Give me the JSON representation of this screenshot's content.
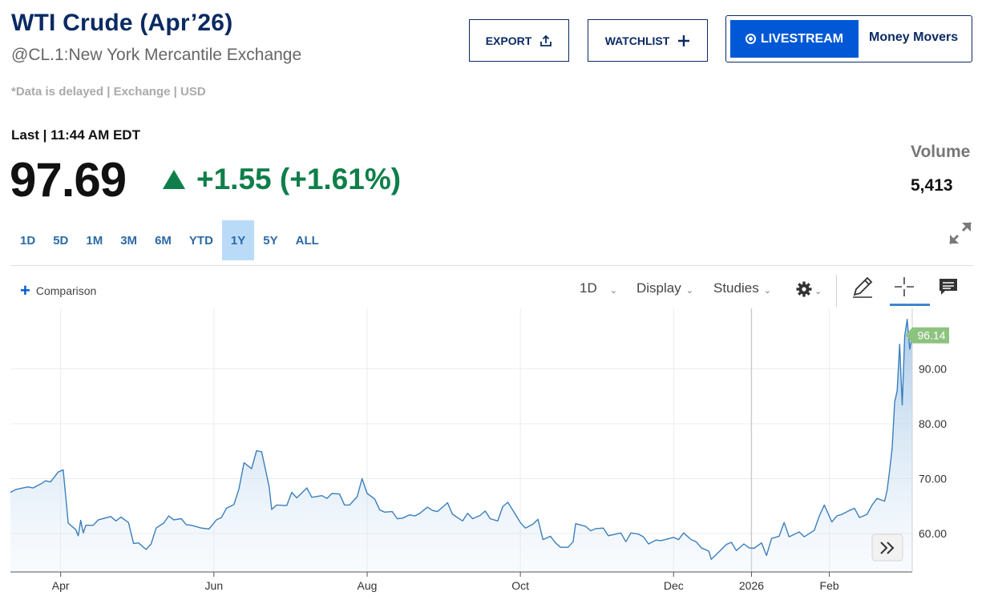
{
  "header": {
    "title": "WTI Crude (Apr’26)",
    "subtitle": "@CL.1:New York Mercantile Exchange",
    "delayed_note": "*Data is delayed | Exchange | USD"
  },
  "actions": {
    "export_label": "EXPORT",
    "watchlist_label": "WATCHLIST",
    "livestream_label": "LIVESTREAM",
    "money_movers_label": "Money Movers"
  },
  "quote": {
    "last_label": "Last | 11:44 AM EDT",
    "price": "97.69",
    "change": "+1.55 (+1.61%)",
    "volume_label": "Volume",
    "volume_value": "5,413"
  },
  "ranges": [
    "1D",
    "5D",
    "1M",
    "3M",
    "6M",
    "YTD",
    "1Y",
    "5Y",
    "ALL"
  ],
  "active_range": "1Y",
  "toolbar": {
    "comparison_label": "Comparison",
    "interval_label": "1D",
    "display_label": "Display",
    "studies_label": "Studies"
  },
  "icons": [
    "upload-icon",
    "plus-icon",
    "live-dot-icon",
    "expand-icon",
    "gear-icon",
    "pencil-icon",
    "crosshair-icon",
    "comment-icon",
    "double-chevron-right-icon"
  ],
  "colors": {
    "brand_navy": "#0b2a63",
    "live_blue": "#0058d6",
    "up_green": "#0e7f4a",
    "line_blue": "#3a7fbd",
    "active_range_bg": "#b9dbf8",
    "price_flag": "#8dc27f"
  },
  "chart_data": {
    "type": "area",
    "title": "",
    "xlabel": "",
    "ylabel": "",
    "last_value_label": "96.14",
    "ylim": [
      53,
      101
    ],
    "y_ticks": [
      60,
      70,
      80,
      90
    ],
    "y_tick_labels": [
      "60.00",
      "70.00",
      "80.00",
      "90.00"
    ],
    "x_ticks": [
      {
        "label": "Apr",
        "date": "2025-04-01"
      },
      {
        "label": "Jun",
        "date": "2025-06-01"
      },
      {
        "label": "Aug",
        "date": "2025-08-01"
      },
      {
        "label": "Oct",
        "date": "2025-10-01"
      },
      {
        "label": "Dec",
        "date": "2025-12-01"
      },
      {
        "label": "2026",
        "date": "2026-01-01"
      },
      {
        "label": "Feb",
        "date": "2026-02-01"
      }
    ],
    "x_range": [
      "2025-03-12",
      "2026-03-06"
    ],
    "grid": true,
    "series": [
      {
        "points": [
          [
            "2025-03-12",
            67.5
          ],
          [
            "2025-03-14",
            68.0
          ],
          [
            "2025-03-17",
            68.3
          ],
          [
            "2025-03-19",
            68.5
          ],
          [
            "2025-03-21",
            68.3
          ],
          [
            "2025-03-24",
            69.0
          ],
          [
            "2025-03-26",
            69.6
          ],
          [
            "2025-03-28",
            69.4
          ],
          [
            "2025-03-31",
            71.2
          ],
          [
            "2025-04-02",
            71.6
          ],
          [
            "2025-04-03",
            66.9
          ],
          [
            "2025-04-04",
            61.9
          ],
          [
            "2025-04-07",
            60.7
          ],
          [
            "2025-04-08",
            59.6
          ],
          [
            "2025-04-09",
            62.4
          ],
          [
            "2025-04-10",
            60.1
          ],
          [
            "2025-04-11",
            61.5
          ],
          [
            "2025-04-14",
            61.5
          ],
          [
            "2025-04-16",
            62.5
          ],
          [
            "2025-04-21",
            63.1
          ],
          [
            "2025-04-23",
            62.3
          ],
          [
            "2025-04-25",
            63.0
          ],
          [
            "2025-04-28",
            62.0
          ],
          [
            "2025-04-30",
            58.2
          ],
          [
            "2025-05-02",
            58.3
          ],
          [
            "2025-05-05",
            57.1
          ],
          [
            "2025-05-07",
            58.1
          ],
          [
            "2025-05-09",
            61.0
          ],
          [
            "2025-05-12",
            61.9
          ],
          [
            "2025-05-14",
            63.2
          ],
          [
            "2025-05-16",
            62.5
          ],
          [
            "2025-05-19",
            62.7
          ],
          [
            "2025-05-21",
            61.6
          ],
          [
            "2025-05-23",
            61.5
          ],
          [
            "2025-05-27",
            61.0
          ],
          [
            "2025-05-29",
            60.9
          ],
          [
            "2025-05-30",
            60.8
          ],
          [
            "2025-06-02",
            62.5
          ],
          [
            "2025-06-04",
            62.9
          ],
          [
            "2025-06-06",
            64.6
          ],
          [
            "2025-06-09",
            65.3
          ],
          [
            "2025-06-11",
            68.2
          ],
          [
            "2025-06-13",
            72.9
          ],
          [
            "2025-06-16",
            71.8
          ],
          [
            "2025-06-18",
            75.1
          ],
          [
            "2025-06-20",
            74.9
          ],
          [
            "2025-06-23",
            68.5
          ],
          [
            "2025-06-24",
            64.4
          ],
          [
            "2025-06-26",
            65.2
          ],
          [
            "2025-06-30",
            65.1
          ],
          [
            "2025-07-02",
            67.5
          ],
          [
            "2025-07-04",
            66.5
          ],
          [
            "2025-07-08",
            68.3
          ],
          [
            "2025-07-10",
            66.6
          ],
          [
            "2025-07-14",
            66.9
          ],
          [
            "2025-07-16",
            66.4
          ],
          [
            "2025-07-18",
            67.3
          ],
          [
            "2025-07-21",
            67.2
          ],
          [
            "2025-07-23",
            65.2
          ],
          [
            "2025-07-25",
            65.2
          ],
          [
            "2025-07-28",
            66.7
          ],
          [
            "2025-07-30",
            70.0
          ],
          [
            "2025-08-01",
            67.3
          ],
          [
            "2025-08-04",
            66.3
          ],
          [
            "2025-08-06",
            64.3
          ],
          [
            "2025-08-08",
            63.9
          ],
          [
            "2025-08-11",
            64.0
          ],
          [
            "2025-08-13",
            62.7
          ],
          [
            "2025-08-15",
            62.8
          ],
          [
            "2025-08-18",
            63.4
          ],
          [
            "2025-08-20",
            63.2
          ],
          [
            "2025-08-22",
            63.7
          ],
          [
            "2025-08-25",
            64.8
          ],
          [
            "2025-08-27",
            64.2
          ],
          [
            "2025-08-29",
            64.0
          ],
          [
            "2025-09-02",
            65.6
          ],
          [
            "2025-09-04",
            63.5
          ],
          [
            "2025-09-08",
            62.3
          ],
          [
            "2025-09-10",
            63.7
          ],
          [
            "2025-09-12",
            62.7
          ],
          [
            "2025-09-15",
            63.3
          ],
          [
            "2025-09-17",
            64.1
          ],
          [
            "2025-09-19",
            62.7
          ],
          [
            "2025-09-22",
            62.3
          ],
          [
            "2025-09-24",
            64.9
          ],
          [
            "2025-09-26",
            65.7
          ],
          [
            "2025-09-29",
            63.5
          ],
          [
            "2025-10-01",
            62.0
          ],
          [
            "2025-10-03",
            61.0
          ],
          [
            "2025-10-06",
            61.7
          ],
          [
            "2025-10-08",
            62.6
          ],
          [
            "2025-10-10",
            58.9
          ],
          [
            "2025-10-13",
            59.5
          ],
          [
            "2025-10-15",
            58.3
          ],
          [
            "2025-10-17",
            57.5
          ],
          [
            "2025-10-20",
            57.5
          ],
          [
            "2025-10-22",
            58.5
          ],
          [
            "2025-10-23",
            61.8
          ],
          [
            "2025-10-27",
            61.3
          ],
          [
            "2025-10-29",
            60.5
          ],
          [
            "2025-10-31",
            60.9
          ],
          [
            "2025-11-03",
            61.0
          ],
          [
            "2025-11-05",
            59.6
          ],
          [
            "2025-11-07",
            59.8
          ],
          [
            "2025-11-10",
            60.1
          ],
          [
            "2025-11-12",
            58.5
          ],
          [
            "2025-11-14",
            60.1
          ],
          [
            "2025-11-17",
            59.9
          ],
          [
            "2025-11-19",
            59.4
          ],
          [
            "2025-11-21",
            58.1
          ],
          [
            "2025-11-24",
            58.8
          ],
          [
            "2025-11-26",
            58.7
          ],
          [
            "2025-12-01",
            59.3
          ],
          [
            "2025-12-03",
            58.9
          ],
          [
            "2025-12-05",
            60.1
          ],
          [
            "2025-12-08",
            58.9
          ],
          [
            "2025-12-10",
            58.5
          ],
          [
            "2025-12-12",
            57.4
          ],
          [
            "2025-12-15",
            56.8
          ],
          [
            "2025-12-16",
            55.3
          ],
          [
            "2025-12-18",
            56.2
          ],
          [
            "2025-12-22",
            58.0
          ],
          [
            "2025-12-24",
            58.4
          ],
          [
            "2025-12-26",
            56.9
          ],
          [
            "2025-12-29",
            58.1
          ],
          [
            "2025-12-31",
            57.4
          ],
          [
            "2026-01-02",
            57.3
          ],
          [
            "2026-01-05",
            58.3
          ],
          [
            "2026-01-07",
            56.0
          ],
          [
            "2026-01-09",
            59.1
          ],
          [
            "2026-01-12",
            59.5
          ],
          [
            "2026-01-14",
            62.0
          ],
          [
            "2026-01-16",
            59.4
          ],
          [
            "2026-01-20",
            60.3
          ],
          [
            "2026-01-22",
            59.4
          ],
          [
            "2026-01-26",
            60.6
          ],
          [
            "2026-01-28",
            63.2
          ],
          [
            "2026-01-30",
            65.2
          ],
          [
            "2026-02-02",
            62.1
          ],
          [
            "2026-02-04",
            63.2
          ],
          [
            "2026-02-06",
            63.5
          ],
          [
            "2026-02-09",
            64.2
          ],
          [
            "2026-02-11",
            64.6
          ],
          [
            "2026-02-13",
            62.9
          ],
          [
            "2026-02-16",
            63.5
          ],
          [
            "2026-02-18",
            65.2
          ],
          [
            "2026-02-20",
            66.4
          ],
          [
            "2026-02-23",
            65.9
          ],
          [
            "2026-02-24",
            67.9
          ],
          [
            "2026-02-25",
            71.5
          ],
          [
            "2026-02-26",
            75.5
          ],
          [
            "2026-02-27",
            84.0
          ],
          [
            "2026-02-28",
            86.0
          ],
          [
            "2026-03-01",
            94.5
          ],
          [
            "2026-03-02",
            83.4
          ],
          [
            "2026-03-03",
            96.0
          ],
          [
            "2026-03-04",
            99.0
          ],
          [
            "2026-03-05",
            93.6
          ],
          [
            "2026-03-06",
            96.1
          ]
        ]
      }
    ]
  }
}
